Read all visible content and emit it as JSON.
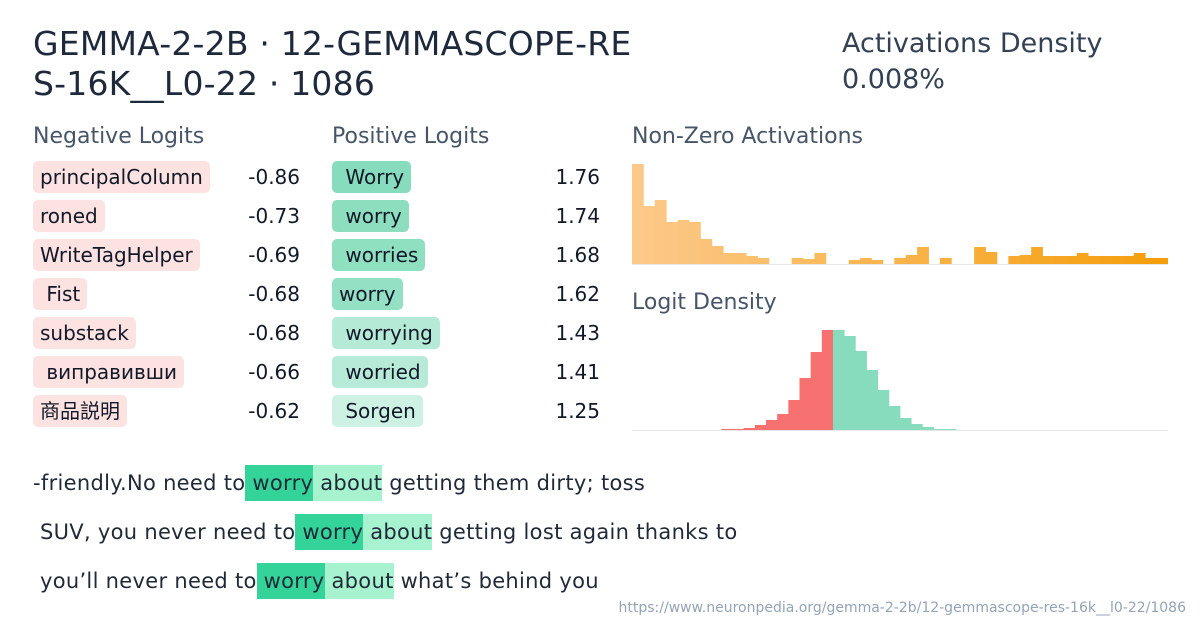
{
  "header": {
    "title": "GEMMA-2-2B · 12-GEMMASCOPE-RES-16K__L0-22 · 1086",
    "density_label": "Activations Density",
    "density_value": "0.008%"
  },
  "negative": {
    "label": "Negative Logits",
    "items": [
      {
        "token": "principalColumn",
        "value": "-0.86"
      },
      {
        "token": "roned",
        "value": "-0.73"
      },
      {
        "token": "WriteTagHelper",
        "value": "-0.69"
      },
      {
        "token": " Fist",
        "value": "-0.68"
      },
      {
        "token": "substack",
        "value": "-0.68"
      },
      {
        "token": " виправивши",
        "value": "-0.66"
      },
      {
        "token": "商品説明",
        "value": "-0.62"
      }
    ]
  },
  "positive": {
    "label": "Positive Logits",
    "items": [
      {
        "token": " Worry",
        "value": "1.76",
        "color": "#86dcbc"
      },
      {
        "token": " worry",
        "value": "1.74",
        "color": "#8ddebf"
      },
      {
        "token": " worries",
        "value": "1.68",
        "color": "#8fdfc1"
      },
      {
        "token": "worry",
        "value": "1.62",
        "color": "#94e0c4"
      },
      {
        "token": " worrying",
        "value": "1.43",
        "color": "#b4ead6"
      },
      {
        "token": " worried",
        "value": "1.41",
        "color": "#b7ebd8"
      },
      {
        "token": " Sorgen",
        "value": "1.25",
        "color": "#cdf2e4"
      }
    ]
  },
  "nonzero": {
    "label": "Non-Zero Activations",
    "chart_data": {
      "type": "bar",
      "values": [
        100,
        58,
        64,
        42,
        44,
        42,
        25,
        18,
        11,
        11,
        8,
        6,
        0,
        0,
        6,
        5,
        11,
        0,
        0,
        4,
        6,
        4,
        0,
        6,
        9,
        17,
        0,
        6,
        0,
        0,
        17,
        12,
        0,
        8,
        9,
        17,
        8,
        8,
        8,
        11,
        8,
        8,
        8,
        8,
        11,
        6,
        6
      ],
      "colors_start": "#fcc98a",
      "colors_end": "#f59e0b"
    }
  },
  "logit_density": {
    "label": "Logit Density",
    "chart_data": {
      "type": "bar",
      "values": [
        0,
        0,
        0,
        0,
        0,
        0,
        0,
        0,
        1,
        1,
        2,
        5,
        10,
        16,
        30,
        52,
        78,
        100,
        100,
        94,
        79,
        60,
        40,
        24,
        12,
        6,
        3,
        1,
        1,
        0,
        0,
        0,
        0,
        0,
        0,
        0,
        0,
        0,
        0,
        0,
        0,
        0,
        0,
        0,
        0,
        0,
        0,
        0
      ],
      "split_index": 18,
      "neg_color": "#f87171",
      "pos_color": "#86dcbc"
    }
  },
  "snippets": [
    {
      "before": "-friendly.No need to",
      "tok1": " worry",
      "tok2": " about",
      "after": " getting them dirty; toss"
    },
    {
      "before": " SUV, you never need to",
      "tok1": " worry",
      "tok2": " about",
      "after": " getting lost again thanks to"
    },
    {
      "before": " you’ll never need to",
      "tok1": " worry",
      "tok2": " about",
      "after": " what’s behind you"
    }
  ],
  "footer": {
    "url": "https://www.neuronpedia.org/gemma-2-2b/12-gemmascope-res-16k__l0-22/1086"
  }
}
